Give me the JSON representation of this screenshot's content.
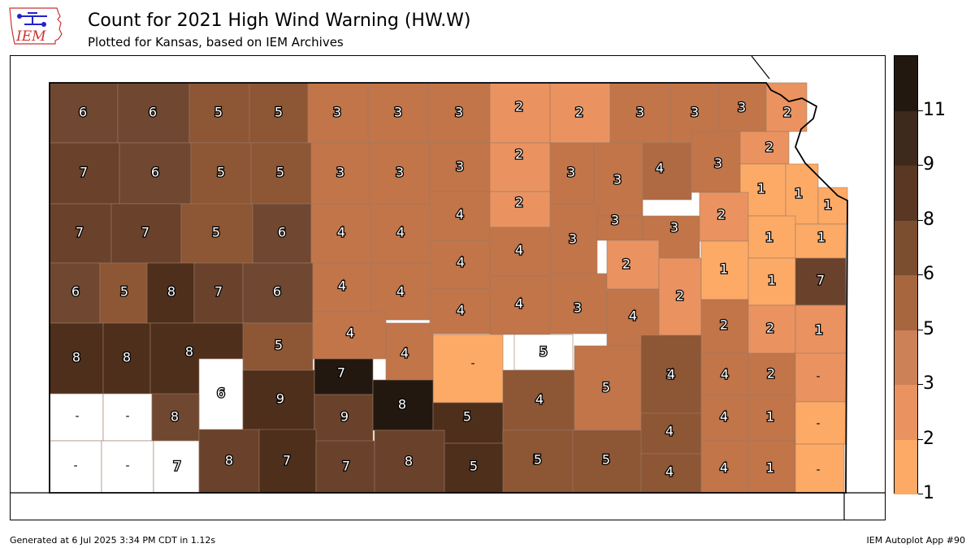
{
  "logo": {
    "text": "IEM"
  },
  "header": {
    "title": "Count for 2021 High Wind Warning (HW.W)",
    "subtitle": "Plotted for Kansas, based on IEM Archives"
  },
  "legend": {
    "ticks": [
      "1",
      "2",
      "3",
      "5",
      "6",
      "8",
      "9",
      "11"
    ],
    "colors": [
      "#fdaa66",
      "#ea9360",
      "#cc8157",
      "#a8663f",
      "#7a4e2e",
      "#593722",
      "#3e2a1c",
      "#231810"
    ]
  },
  "map": {
    "counties": [
      {
        "label": "6",
        "color": "#704831"
      },
      {
        "label": "6",
        "color": "#704831"
      },
      {
        "label": "5",
        "color": "#8d5634"
      },
      {
        "label": "5",
        "color": "#8d5634"
      },
      {
        "label": "3",
        "color": "#c27549"
      },
      {
        "label": "3",
        "color": "#c27549"
      },
      {
        "label": "3",
        "color": "#c27549"
      },
      {
        "label": "2",
        "color": "#ea9360"
      },
      {
        "label": "2",
        "color": "#ea9360"
      },
      {
        "label": "3",
        "color": "#c27549"
      },
      {
        "label": "3",
        "color": "#c27549"
      },
      {
        "label": "3",
        "color": "#c27549"
      },
      {
        "label": "2",
        "color": "#ea9360"
      },
      {
        "label": "7",
        "color": "#6a412a"
      },
      {
        "label": "6",
        "color": "#704831"
      },
      {
        "label": "5",
        "color": "#8d5634"
      },
      {
        "label": "5",
        "color": "#8d5634"
      },
      {
        "label": "3",
        "color": "#c27549"
      },
      {
        "label": "3",
        "color": "#c27549"
      },
      {
        "label": "3",
        "color": "#c27549"
      },
      {
        "label": "2",
        "color": "#ea9360"
      },
      {
        "label": "3",
        "color": "#c27549"
      },
      {
        "label": "3",
        "color": "#c27549"
      },
      {
        "label": "4",
        "color": "#b06a43"
      },
      {
        "label": "3",
        "color": "#c27549"
      },
      {
        "label": "2",
        "color": "#ea9360"
      },
      {
        "label": "1",
        "color": "#fdaa66"
      },
      {
        "label": "1",
        "color": "#fdaa66"
      },
      {
        "label": "1",
        "color": "#fdaa66"
      },
      {
        "label": "7",
        "color": "#6a412a"
      },
      {
        "label": "7",
        "color": "#6a412a"
      },
      {
        "label": "5",
        "color": "#8d5634"
      },
      {
        "label": "6",
        "color": "#704831"
      },
      {
        "label": "4",
        "color": "#c27549"
      },
      {
        "label": "4",
        "color": "#c27549"
      },
      {
        "label": "4",
        "color": "#c27549"
      },
      {
        "label": "2",
        "color": "#ea9360"
      },
      {
        "label": "3",
        "color": "#c27549"
      },
      {
        "label": "3",
        "color": "#c27549"
      },
      {
        "label": "3",
        "color": "#c27549"
      },
      {
        "label": "2",
        "color": "#ea9360"
      },
      {
        "label": "1",
        "color": "#fdaa66"
      },
      {
        "label": "1",
        "color": "#fdaa66"
      },
      {
        "label": "6",
        "color": "#704831"
      },
      {
        "label": "5",
        "color": "#8d5634"
      },
      {
        "label": "8",
        "color": "#4e2f1c"
      },
      {
        "label": "7",
        "color": "#6a412a"
      },
      {
        "label": "6",
        "color": "#704831"
      },
      {
        "label": "4",
        "color": "#c27549"
      },
      {
        "label": "4",
        "color": "#c27549"
      },
      {
        "label": "4",
        "color": "#c27549"
      },
      {
        "label": "4",
        "color": "#c27549"
      },
      {
        "label": "3",
        "color": "#c27549"
      },
      {
        "label": "2",
        "color": "#ea9360"
      },
      {
        "label": "2",
        "color": "#ea9360"
      },
      {
        "label": "1",
        "color": "#fdaa66"
      },
      {
        "label": "1",
        "color": "#fdaa66"
      },
      {
        "label": "7",
        "color": "#6a412a"
      },
      {
        "label": "8",
        "color": "#4e2f1c"
      },
      {
        "label": "8",
        "color": "#4e2f1c"
      },
      {
        "label": "8",
        "color": "#4e2f1c"
      },
      {
        "label": "5",
        "color": "#8d5634"
      },
      {
        "label": "4",
        "color": "#c27549"
      },
      {
        "label": "4",
        "color": "#c27549"
      },
      {
        "label": "4",
        "color": "#c27549"
      },
      {
        "label": "4",
        "color": "#c27549"
      },
      {
        "label": "4",
        "color": "#c27549"
      },
      {
        "label": "3",
        "color": "#c27549"
      },
      {
        "label": "2",
        "color": "#ea9360"
      },
      {
        "label": "2",
        "color": "#ea9360"
      },
      {
        "label": "1",
        "color": "#fdaa66"
      },
      {
        "label": "-",
        "color": "#ffffff"
      },
      {
        "label": "5",
        "color": "#8d5634"
      },
      {
        "label": "4",
        "color": "#c27549"
      },
      {
        "label": "5",
        "color": "#8d5634"
      },
      {
        "label": "4",
        "color": "#c27549"
      },
      {
        "label": "4",
        "color": "#c27549"
      },
      {
        "label": "2",
        "color": "#ea9360"
      },
      {
        "label": "-",
        "color": "#ffffff"
      },
      {
        "label": "-",
        "color": "#ffffff"
      },
      {
        "label": "-",
        "color": "#ffffff"
      },
      {
        "label": "6",
        "color": "#704831"
      },
      {
        "label": "8",
        "color": "#4e2f1c"
      },
      {
        "label": "9",
        "color": "#231810"
      },
      {
        "label": "7",
        "color": "#6a412a"
      },
      {
        "label": "9",
        "color": "#231810"
      },
      {
        "label": "8",
        "color": "#4e2f1c"
      },
      {
        "label": "5",
        "color": "#8d5634"
      },
      {
        "label": "5",
        "color": "#8d5634"
      },
      {
        "label": "5",
        "color": "#8d5634"
      },
      {
        "label": "4",
        "color": "#c27549"
      },
      {
        "label": "4",
        "color": "#c27549"
      },
      {
        "label": "1",
        "color": "#fdaa66"
      },
      {
        "label": "-",
        "color": "#ffffff"
      },
      {
        "label": "-",
        "color": "#ffffff"
      },
      {
        "label": "-",
        "color": "#ffffff"
      },
      {
        "label": "7",
        "color": "#6a412a"
      },
      {
        "label": "8",
        "color": "#4e2f1c"
      },
      {
        "label": "7",
        "color": "#6a412a"
      },
      {
        "label": "7",
        "color": "#6a412a"
      },
      {
        "label": "8",
        "color": "#4e2f1c"
      },
      {
        "label": "5",
        "color": "#8d5634"
      },
      {
        "label": "5",
        "color": "#8d5634"
      },
      {
        "label": "5",
        "color": "#8d5634"
      },
      {
        "label": "4",
        "color": "#c27549"
      },
      {
        "label": "4",
        "color": "#c27549"
      },
      {
        "label": "1",
        "color": "#fdaa66"
      },
      {
        "label": "-",
        "color": "#ffffff"
      },
      {
        "label": "-",
        "color": "#ffffff"
      },
      {
        "label": "-",
        "color": "#ffffff"
      }
    ]
  },
  "footer": {
    "generated": "Generated at 6 Jul 2025 3:34 PM CDT in 1.12s",
    "app": "IEM Autoplot App #90"
  }
}
